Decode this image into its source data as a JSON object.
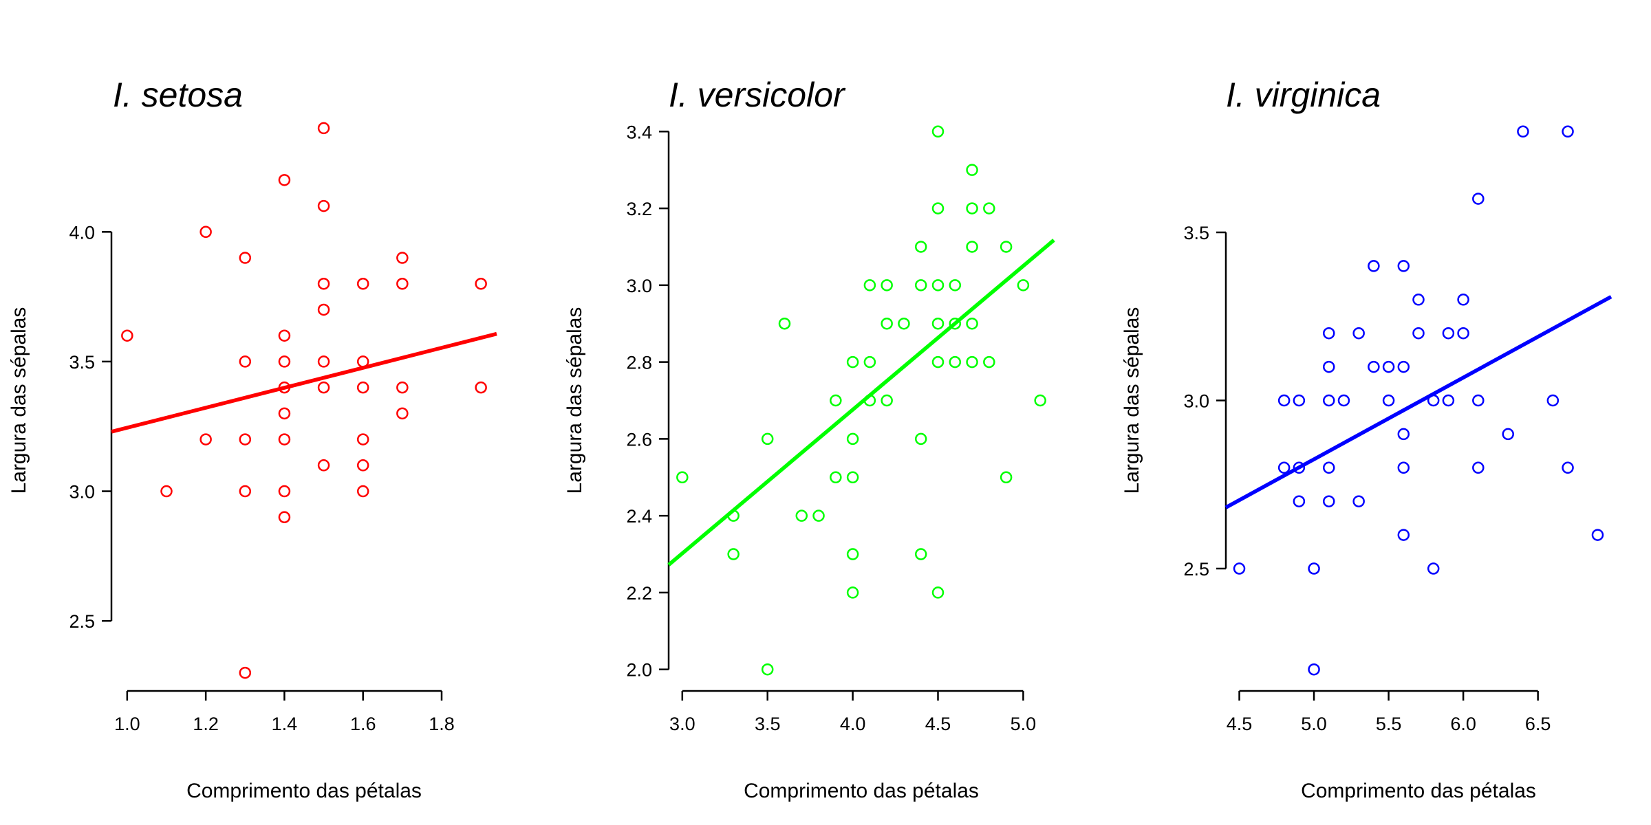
{
  "chart_data": [
    {
      "type": "scatter",
      "title": "I. setosa",
      "xlabel": "Comprimento das pétalas",
      "ylabel": "Largura das sépalas",
      "color": "#ff0000",
      "grid": false,
      "xlim": [
        0.96,
        1.94
      ],
      "ylim": [
        2.23,
        4.47
      ],
      "xticks": [
        1.0,
        1.2,
        1.4,
        1.6,
        1.8
      ],
      "xtick_labels": [
        "1.0",
        "1.2",
        "1.4",
        "1.6",
        "1.8"
      ],
      "yticks": [
        2.5,
        3.0,
        3.5,
        4.0
      ],
      "ytick_labels": [
        "2.5",
        "3.0",
        "3.5",
        "4.0"
      ],
      "fit_line": {
        "intercept": 2.86,
        "slope": 0.385
      },
      "points": [
        [
          1.0,
          3.6
        ],
        [
          1.1,
          3.0
        ],
        [
          1.2,
          4.0
        ],
        [
          1.2,
          3.2
        ],
        [
          1.3,
          3.9
        ],
        [
          1.3,
          3.5
        ],
        [
          1.3,
          3.2
        ],
        [
          1.3,
          3.0
        ],
        [
          1.3,
          2.3
        ],
        [
          1.4,
          4.2
        ],
        [
          1.4,
          3.6
        ],
        [
          1.4,
          3.5
        ],
        [
          1.4,
          3.4
        ],
        [
          1.4,
          3.3
        ],
        [
          1.4,
          3.2
        ],
        [
          1.4,
          3.0
        ],
        [
          1.4,
          2.9
        ],
        [
          1.5,
          4.4
        ],
        [
          1.5,
          4.1
        ],
        [
          1.5,
          3.8
        ],
        [
          1.5,
          3.7
        ],
        [
          1.5,
          3.5
        ],
        [
          1.5,
          3.4
        ],
        [
          1.5,
          3.1
        ],
        [
          1.6,
          3.8
        ],
        [
          1.6,
          3.5
        ],
        [
          1.6,
          3.4
        ],
        [
          1.6,
          3.2
        ],
        [
          1.6,
          3.1
        ],
        [
          1.6,
          3.0
        ],
        [
          1.7,
          3.9
        ],
        [
          1.7,
          3.8
        ],
        [
          1.7,
          3.4
        ],
        [
          1.7,
          3.3
        ],
        [
          1.9,
          3.8
        ],
        [
          1.9,
          3.4
        ]
      ]
    },
    {
      "type": "scatter",
      "title": "I. versicolor",
      "xlabel": "Comprimento das pétalas",
      "ylabel": "Largura das sépalas",
      "color": "#00ff00",
      "grid": false,
      "xlim": [
        2.92,
        5.18
      ],
      "ylim": [
        1.944,
        3.456
      ],
      "xticks": [
        3.0,
        3.5,
        4.0,
        4.5,
        5.0
      ],
      "xtick_labels": [
        "3.0",
        "3.5",
        "4.0",
        "4.5",
        "5.0"
      ],
      "yticks": [
        2.0,
        2.2,
        2.4,
        2.6,
        2.8,
        3.0,
        3.2,
        3.4
      ],
      "ytick_labels": [
        "2.0",
        "2.2",
        "2.4",
        "2.6",
        "2.8",
        "3.0",
        "3.2",
        "3.4"
      ],
      "fit_line": {
        "intercept": 1.18,
        "slope": 0.374
      },
      "points": [
        [
          3.0,
          2.5
        ],
        [
          3.3,
          2.4
        ],
        [
          3.3,
          2.3
        ],
        [
          3.5,
          2.6
        ],
        [
          3.5,
          2.0
        ],
        [
          3.6,
          2.9
        ],
        [
          3.7,
          2.4
        ],
        [
          3.8,
          2.4
        ],
        [
          3.9,
          2.7
        ],
        [
          3.9,
          2.5
        ],
        [
          4.0,
          2.8
        ],
        [
          4.0,
          2.6
        ],
        [
          4.0,
          2.5
        ],
        [
          4.0,
          2.3
        ],
        [
          4.0,
          2.2
        ],
        [
          4.1,
          3.0
        ],
        [
          4.1,
          2.8
        ],
        [
          4.1,
          2.7
        ],
        [
          4.2,
          3.0
        ],
        [
          4.2,
          2.9
        ],
        [
          4.2,
          2.7
        ],
        [
          4.3,
          2.9
        ],
        [
          4.4,
          3.1
        ],
        [
          4.4,
          3.0
        ],
        [
          4.4,
          2.6
        ],
        [
          4.4,
          2.3
        ],
        [
          4.5,
          3.4
        ],
        [
          4.5,
          3.2
        ],
        [
          4.5,
          3.0
        ],
        [
          4.5,
          2.9
        ],
        [
          4.5,
          2.8
        ],
        [
          4.5,
          2.2
        ],
        [
          4.6,
          3.0
        ],
        [
          4.6,
          2.9
        ],
        [
          4.6,
          2.8
        ],
        [
          4.7,
          3.3
        ],
        [
          4.7,
          3.2
        ],
        [
          4.7,
          3.1
        ],
        [
          4.7,
          2.9
        ],
        [
          4.7,
          2.8
        ],
        [
          4.8,
          3.2
        ],
        [
          4.8,
          2.8
        ],
        [
          4.9,
          3.1
        ],
        [
          4.9,
          2.5
        ],
        [
          5.0,
          3.0
        ],
        [
          5.1,
          2.7
        ]
      ]
    },
    {
      "type": "scatter",
      "title": "I. virginica",
      "xlabel": "Comprimento das pétalas",
      "ylabel": "Largura das sépalas",
      "color": "#0000ff",
      "grid": false,
      "xlim": [
        4.41,
        6.99
      ],
      "ylim": [
        2.136,
        3.864
      ],
      "xticks": [
        4.5,
        5.0,
        5.5,
        6.0,
        6.5
      ],
      "xtick_labels": [
        "4.5",
        "5.0",
        "5.5",
        "6.0",
        "6.5"
      ],
      "yticks": [
        2.5,
        3.0,
        3.5
      ],
      "ytick_labels": [
        "2.5",
        "3.0",
        "3.5"
      ],
      "fit_line": {
        "intercept": 1.61,
        "slope": 0.243
      },
      "points": [
        [
          4.5,
          2.5
        ],
        [
          4.8,
          3.0
        ],
        [
          4.8,
          2.8
        ],
        [
          4.9,
          3.0
        ],
        [
          4.9,
          2.8
        ],
        [
          4.9,
          2.7
        ],
        [
          5.0,
          2.5
        ],
        [
          5.0,
          2.2
        ],
        [
          5.1,
          3.2
        ],
        [
          5.1,
          3.1
        ],
        [
          5.1,
          3.0
        ],
        [
          5.1,
          2.8
        ],
        [
          5.1,
          2.7
        ],
        [
          5.2,
          3.0
        ],
        [
          5.3,
          3.2
        ],
        [
          5.3,
          2.7
        ],
        [
          5.4,
          3.4
        ],
        [
          5.4,
          3.1
        ],
        [
          5.5,
          3.1
        ],
        [
          5.5,
          3.0
        ],
        [
          5.6,
          3.4
        ],
        [
          5.6,
          3.1
        ],
        [
          5.6,
          2.9
        ],
        [
          5.6,
          2.8
        ],
        [
          5.6,
          2.6
        ],
        [
          5.7,
          3.3
        ],
        [
          5.7,
          3.2
        ],
        [
          5.8,
          3.0
        ],
        [
          5.8,
          2.5
        ],
        [
          5.9,
          3.2
        ],
        [
          5.9,
          3.0
        ],
        [
          6.0,
          3.3
        ],
        [
          6.0,
          3.2
        ],
        [
          6.1,
          3.6
        ],
        [
          6.1,
          3.0
        ],
        [
          6.1,
          2.8
        ],
        [
          6.3,
          2.9
        ],
        [
          6.4,
          3.8
        ],
        [
          6.6,
          3.0
        ],
        [
          6.7,
          3.8
        ],
        [
          6.7,
          2.8
        ],
        [
          6.9,
          2.6
        ]
      ]
    }
  ]
}
